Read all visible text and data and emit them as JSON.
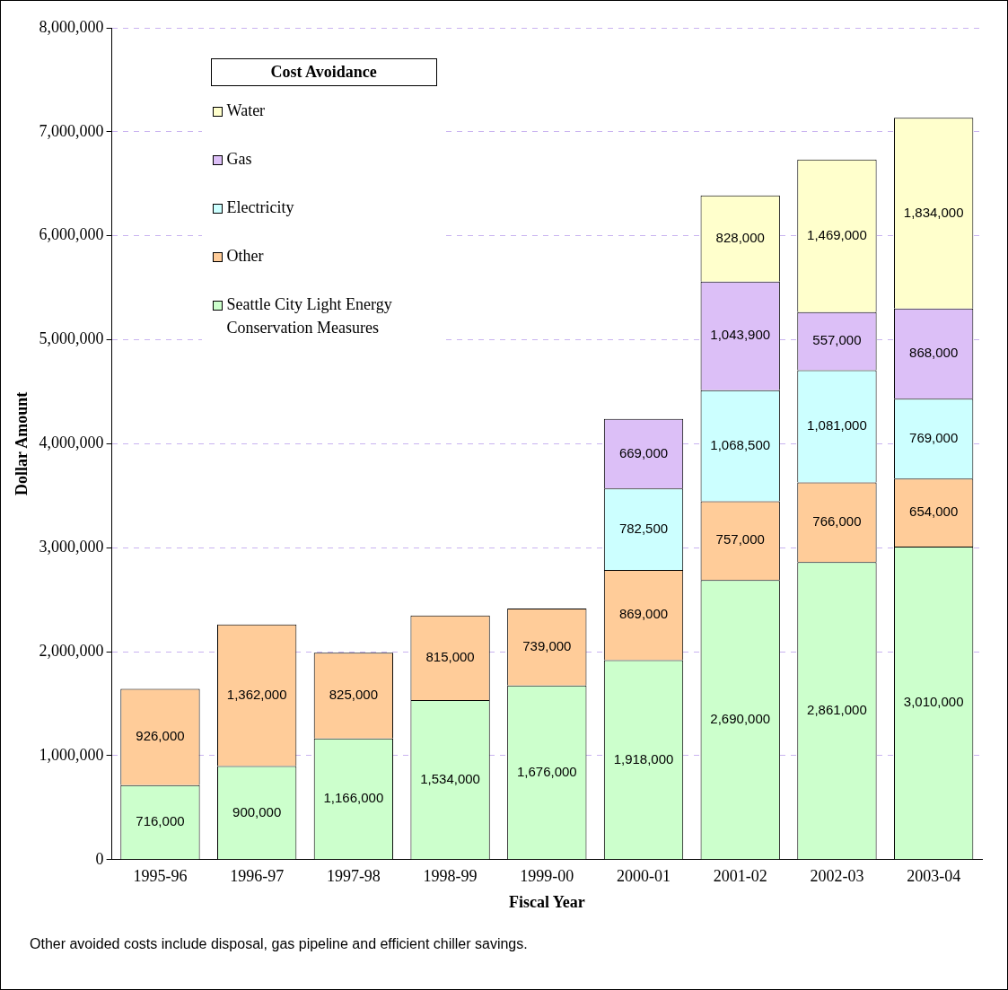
{
  "chart_data": {
    "type": "bar",
    "stacked": true,
    "categories": [
      "1995-96",
      "1996-97",
      "1997-98",
      "1998-99",
      "1999-00",
      "2000-01",
      "2001-02",
      "2002-03",
      "2003-04"
    ],
    "series": [
      {
        "name": "Seattle City Light Energy Conservation Measures",
        "color": "#ccffcc",
        "values": [
          716000,
          900000,
          1166000,
          1534000,
          1676000,
          1918000,
          2690000,
          2861000,
          3010000
        ],
        "value_labels": [
          "716,000",
          "900,000",
          "1,166,000",
          "1,534,000",
          "1,676,000",
          "1,918,000",
          "2,690,000",
          "2,861,000",
          "3,010,000"
        ]
      },
      {
        "name": "Other",
        "color": "#ffcc99",
        "values": [
          926000,
          1362000,
          825000,
          815000,
          739000,
          869000,
          757000,
          766000,
          654000
        ],
        "value_labels": [
          "926,000",
          "1,362,000",
          "825,000",
          "815,000",
          "739,000",
          "869,000",
          "757,000",
          "766,000",
          "654,000"
        ]
      },
      {
        "name": "Electricity",
        "color": "#ccffff",
        "values": [
          null,
          null,
          null,
          null,
          null,
          782500,
          1068500,
          1081000,
          769000
        ],
        "value_labels": [
          null,
          null,
          null,
          null,
          null,
          "782,500",
          "1,068,500",
          "1,081,000",
          "769,000"
        ]
      },
      {
        "name": "Gas",
        "color": "#dcbff7",
        "values": [
          null,
          null,
          null,
          null,
          null,
          669000,
          1043900,
          557000,
          868000
        ],
        "value_labels": [
          null,
          null,
          null,
          null,
          null,
          "669,000",
          "1,043,900",
          "557,000",
          "868,000"
        ]
      },
      {
        "name": "Water",
        "color": "#ffffcc",
        "values": [
          null,
          null,
          null,
          null,
          null,
          null,
          828000,
          1469000,
          1834000
        ],
        "value_labels": [
          null,
          null,
          null,
          null,
          null,
          null,
          "828,000",
          "1,469,000",
          "1,834,000"
        ]
      }
    ],
    "ylim": [
      0,
      8000000
    ],
    "yticks": [
      0,
      {
        "value": 1000000,
        "label": "1,000,000"
      },
      {
        "value": 2000000,
        "label": "2,000,000"
      },
      {
        "value": 3000000,
        "label": "3,000,000"
      },
      {
        "value": 4000000,
        "label": "4,000,000"
      },
      {
        "value": 5000000,
        "label": "5,000,000"
      },
      {
        "value": 6000000,
        "label": "6,000,000"
      },
      {
        "value": 7000000,
        "label": "7,000,000"
      },
      {
        "value": 8000000,
        "label": "8,000,000"
      }
    ],
    "xlabel": "Fiscal Year",
    "ylabel": "Dollar Amount",
    "legend_title": "Cost Avoidance",
    "legend": "top left",
    "grid": "y",
    "annotations": [
      "Other avoided costs include disposal, gas pipeline and efficient chiller savings."
    ]
  }
}
